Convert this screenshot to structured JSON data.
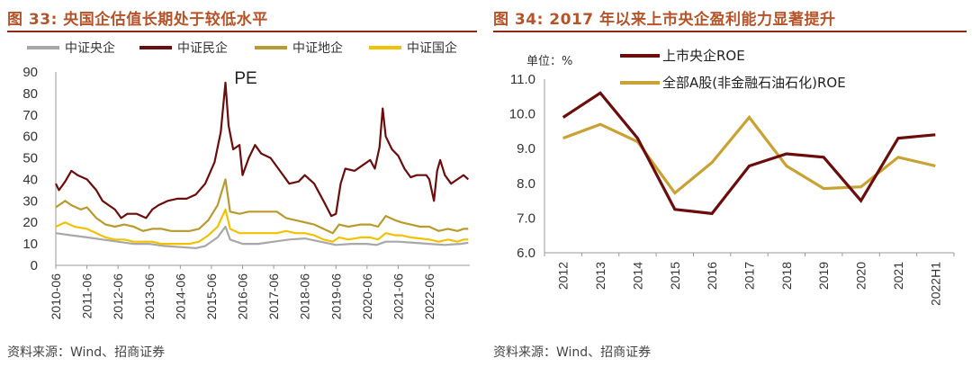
{
  "figure_left": {
    "title": "图 33:  央国企估值长期处于较低水平",
    "source": "资料来源：Wind、招商证券"
  },
  "figure_right": {
    "title": "图 34:  2017 年以来上市央企盈利能力显著提升",
    "source": "资料来源：Wind、招商证券"
  },
  "colors": {
    "title": "#b5542a",
    "rule": "#8b2b16",
    "central_soe": "#a8a8a8",
    "private": "#6b0d0d",
    "local_soe": "#b89a2e",
    "state_soe": "#f2c200",
    "roe_central": "#6b0d0d",
    "roe_all": "#c8a232"
  },
  "chart_data": [
    {
      "type": "line",
      "annotation": "PE",
      "ylim": [
        0,
        90
      ],
      "yticks": [
        0,
        10,
        20,
        30,
        40,
        50,
        60,
        70,
        80,
        90
      ],
      "x_tick_labels": [
        "2010-06",
        "2011-06",
        "2012-06",
        "2013-06",
        "2014-06",
        "2015-06",
        "2016-06",
        "2017-06",
        "2018-06",
        "2019-06",
        "2020-06",
        "2021-06",
        "2022-06"
      ],
      "x_range": [
        2010.0,
        2023.3
      ],
      "legend": "top",
      "series": [
        {
          "name": "中证央企",
          "color_key": "central_soe",
          "points": [
            [
              2010.0,
              15
            ],
            [
              2010.5,
              14
            ],
            [
              2011.0,
              13
            ],
            [
              2011.5,
              12
            ],
            [
              2012.0,
              11
            ],
            [
              2012.5,
              10
            ],
            [
              2013.0,
              10
            ],
            [
              2013.5,
              9
            ],
            [
              2014.0,
              8.5
            ],
            [
              2014.5,
              8
            ],
            [
              2014.8,
              9
            ],
            [
              2015.2,
              13
            ],
            [
              2015.45,
              18
            ],
            [
              2015.6,
              12
            ],
            [
              2016.0,
              10
            ],
            [
              2016.5,
              10
            ],
            [
              2017.0,
              11
            ],
            [
              2017.5,
              12
            ],
            [
              2018.0,
              12.5
            ],
            [
              2018.5,
              11
            ],
            [
              2019.0,
              9.5
            ],
            [
              2019.5,
              10
            ],
            [
              2020.0,
              10
            ],
            [
              2020.3,
              9.5
            ],
            [
              2020.6,
              11
            ],
            [
              2021.0,
              11
            ],
            [
              2021.5,
              10.5
            ],
            [
              2022.0,
              10
            ],
            [
              2022.5,
              9.5
            ],
            [
              2023.0,
              10
            ],
            [
              2023.25,
              10.5
            ]
          ]
        },
        {
          "name": "中证民企",
          "color_key": "private",
          "points": [
            [
              2010.0,
              38
            ],
            [
              2010.1,
              35
            ],
            [
              2010.3,
              39
            ],
            [
              2010.5,
              44
            ],
            [
              2010.7,
              42
            ],
            [
              2011.0,
              40
            ],
            [
              2011.3,
              35
            ],
            [
              2011.5,
              30
            ],
            [
              2011.7,
              28
            ],
            [
              2011.9,
              26
            ],
            [
              2012.1,
              22
            ],
            [
              2012.3,
              24
            ],
            [
              2012.6,
              24
            ],
            [
              2012.9,
              22
            ],
            [
              2013.1,
              26
            ],
            [
              2013.3,
              28
            ],
            [
              2013.6,
              30
            ],
            [
              2013.9,
              31
            ],
            [
              2014.2,
              31
            ],
            [
              2014.5,
              33
            ],
            [
              2014.8,
              38
            ],
            [
              2015.1,
              48
            ],
            [
              2015.3,
              62
            ],
            [
              2015.45,
              85
            ],
            [
              2015.55,
              65
            ],
            [
              2015.7,
              54
            ],
            [
              2015.9,
              56
            ],
            [
              2016.0,
              42
            ],
            [
              2016.2,
              50
            ],
            [
              2016.4,
              56
            ],
            [
              2016.6,
              52
            ],
            [
              2016.9,
              50
            ],
            [
              2017.2,
              44
            ],
            [
              2017.5,
              38
            ],
            [
              2017.8,
              39
            ],
            [
              2018.0,
              42
            ],
            [
              2018.3,
              38
            ],
            [
              2018.6,
              30
            ],
            [
              2018.85,
              23
            ],
            [
              2019.0,
              24
            ],
            [
              2019.15,
              38
            ],
            [
              2019.3,
              45
            ],
            [
              2019.6,
              44
            ],
            [
              2019.9,
              47
            ],
            [
              2020.1,
              49
            ],
            [
              2020.25,
              45
            ],
            [
              2020.4,
              55
            ],
            [
              2020.5,
              73
            ],
            [
              2020.6,
              60
            ],
            [
              2020.8,
              54
            ],
            [
              2021.0,
              51
            ],
            [
              2021.2,
              45
            ],
            [
              2021.4,
              41
            ],
            [
              2021.6,
              42
            ],
            [
              2021.9,
              42
            ],
            [
              2022.0,
              40
            ],
            [
              2022.15,
              30
            ],
            [
              2022.25,
              44
            ],
            [
              2022.35,
              49
            ],
            [
              2022.5,
              42
            ],
            [
              2022.7,
              38
            ],
            [
              2022.9,
              40
            ],
            [
              2023.1,
              42
            ],
            [
              2023.25,
              40
            ]
          ]
        },
        {
          "name": "中证地企",
          "color_key": "local_soe",
          "points": [
            [
              2010.0,
              27
            ],
            [
              2010.3,
              30
            ],
            [
              2010.5,
              28
            ],
            [
              2010.8,
              26
            ],
            [
              2011.0,
              27
            ],
            [
              2011.3,
              22
            ],
            [
              2011.6,
              19
            ],
            [
              2011.9,
              18
            ],
            [
              2012.2,
              19
            ],
            [
              2012.5,
              18
            ],
            [
              2012.8,
              16
            ],
            [
              2013.1,
              17
            ],
            [
              2013.4,
              17
            ],
            [
              2013.7,
              16
            ],
            [
              2014.0,
              16
            ],
            [
              2014.3,
              16
            ],
            [
              2014.6,
              17
            ],
            [
              2014.9,
              21
            ],
            [
              2015.2,
              28
            ],
            [
              2015.45,
              40
            ],
            [
              2015.6,
              25
            ],
            [
              2015.9,
              24
            ],
            [
              2016.2,
              25
            ],
            [
              2016.5,
              25
            ],
            [
              2016.8,
              25
            ],
            [
              2017.1,
              25
            ],
            [
              2017.4,
              22
            ],
            [
              2017.7,
              21
            ],
            [
              2018.0,
              20
            ],
            [
              2018.3,
              19
            ],
            [
              2018.6,
              17
            ],
            [
              2018.9,
              15
            ],
            [
              2019.1,
              19
            ],
            [
              2019.4,
              18
            ],
            [
              2019.8,
              19
            ],
            [
              2020.1,
              19
            ],
            [
              2020.35,
              18
            ],
            [
              2020.6,
              23
            ],
            [
              2020.9,
              21
            ],
            [
              2021.1,
              20
            ],
            [
              2021.4,
              19
            ],
            [
              2021.7,
              18
            ],
            [
              2022.0,
              18
            ],
            [
              2022.3,
              16
            ],
            [
              2022.6,
              17
            ],
            [
              2022.9,
              16
            ],
            [
              2023.1,
              17
            ],
            [
              2023.25,
              17
            ]
          ]
        },
        {
          "name": "中证国企",
          "color_key": "state_soe",
          "points": [
            [
              2010.0,
              18
            ],
            [
              2010.3,
              20
            ],
            [
              2010.6,
              18
            ],
            [
              2011.0,
              17
            ],
            [
              2011.3,
              15
            ],
            [
              2011.6,
              13
            ],
            [
              2011.9,
              12
            ],
            [
              2012.2,
              12
            ],
            [
              2012.5,
              11
            ],
            [
              2012.8,
              11
            ],
            [
              2013.1,
              11
            ],
            [
              2013.4,
              10
            ],
            [
              2013.7,
              10
            ],
            [
              2014.0,
              10
            ],
            [
              2014.3,
              10
            ],
            [
              2014.6,
              11
            ],
            [
              2014.9,
              14
            ],
            [
              2015.2,
              18
            ],
            [
              2015.45,
              26
            ],
            [
              2015.6,
              17
            ],
            [
              2015.9,
              15
            ],
            [
              2016.2,
              15
            ],
            [
              2016.5,
              15
            ],
            [
              2016.8,
              15
            ],
            [
              2017.1,
              15
            ],
            [
              2017.4,
              16
            ],
            [
              2017.7,
              15
            ],
            [
              2018.0,
              15
            ],
            [
              2018.3,
              14
            ],
            [
              2018.6,
              12
            ],
            [
              2018.9,
              11
            ],
            [
              2019.1,
              13
            ],
            [
              2019.4,
              12
            ],
            [
              2019.8,
              13
            ],
            [
              2020.1,
              13
            ],
            [
              2020.35,
              12
            ],
            [
              2020.6,
              15
            ],
            [
              2020.9,
              14
            ],
            [
              2021.1,
              14
            ],
            [
              2021.4,
              13
            ],
            [
              2021.7,
              12.5
            ],
            [
              2022.0,
              12
            ],
            [
              2022.3,
              11
            ],
            [
              2022.6,
              12
            ],
            [
              2022.9,
              11
            ],
            [
              2023.1,
              12
            ],
            [
              2023.25,
              12
            ]
          ]
        }
      ]
    },
    {
      "type": "line",
      "unit_label": "单位：%",
      "categories": [
        "2012",
        "2013",
        "2014",
        "2015",
        "2016",
        "2017",
        "2018",
        "2019",
        "2020",
        "2021",
        "2022H1"
      ],
      "ylim": [
        6.0,
        11.0
      ],
      "yticks": [
        "6.0",
        "7.0",
        "8.0",
        "9.0",
        "10.0",
        "11.0"
      ],
      "legend": "top-left",
      "series": [
        {
          "name": "上市央企ROE",
          "color_key": "roe_central",
          "values": [
            9.9,
            10.6,
            9.3,
            7.25,
            7.13,
            8.5,
            8.85,
            8.75,
            7.5,
            9.3,
            9.4
          ]
        },
        {
          "name": "全部A股(非金融石油石化)ROE",
          "color_key": "roe_all",
          "values": [
            9.3,
            9.7,
            9.2,
            7.72,
            8.6,
            9.9,
            8.5,
            7.85,
            7.9,
            8.75,
            8.5
          ]
        }
      ]
    }
  ]
}
